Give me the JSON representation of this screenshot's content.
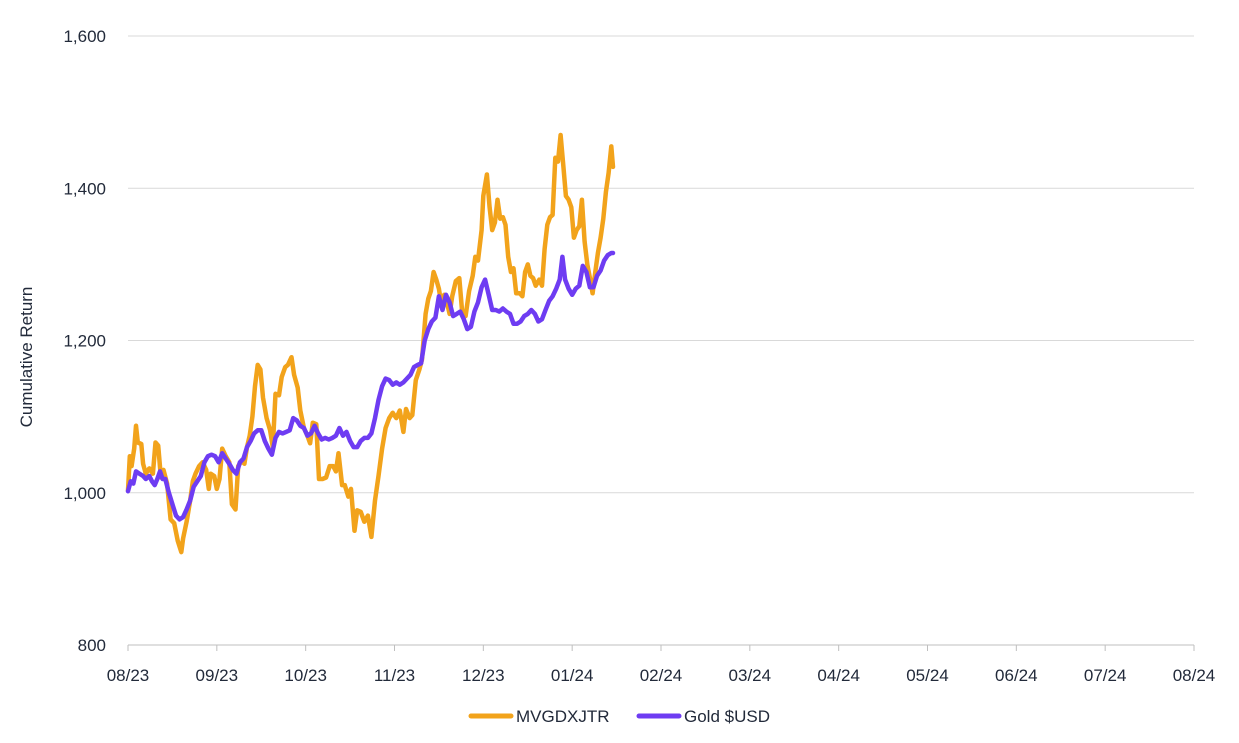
{
  "chart_data": {
    "type": "line",
    "title": "",
    "xlabel": "",
    "ylabel": "Cumulative Return",
    "ylim": [
      800,
      1600
    ],
    "yticks": [
      "800",
      "1,000",
      "1,200",
      "1,400",
      "1,600"
    ],
    "ytick_values": [
      800,
      1000,
      1200,
      1400,
      1600
    ],
    "categories": [
      "08/23",
      "09/23",
      "10/23",
      "11/23",
      "12/23",
      "01/24",
      "02/24",
      "03/24",
      "04/24",
      "05/24",
      "06/24",
      "07/24",
      "08/24"
    ],
    "grid": "horizontal",
    "legend_position": "bottom-center",
    "colors": {
      "MVGDXJTR": "#F2A31B",
      "Gold $USD": "#6E3CF2",
      "grid": "#d9d9d9",
      "text": "#222a3a"
    },
    "series": [
      {
        "name": "MVGDXJTR",
        "values": [
          [
            0,
            1003
          ],
          [
            0.02,
            1048
          ],
          [
            0.04,
            1035
          ],
          [
            0.07,
            1058
          ],
          [
            0.09,
            1088
          ],
          [
            0.11,
            1066
          ],
          [
            0.15,
            1064
          ],
          [
            0.17,
            1038
          ],
          [
            0.2,
            1025
          ],
          [
            0.24,
            1032
          ],
          [
            0.28,
            1025
          ],
          [
            0.31,
            1066
          ],
          [
            0.34,
            1062
          ],
          [
            0.37,
            1020
          ],
          [
            0.4,
            1030
          ],
          [
            0.44,
            1012
          ],
          [
            0.48,
            965
          ],
          [
            0.52,
            960
          ],
          [
            0.56,
            937
          ],
          [
            0.6,
            922
          ],
          [
            0.62,
            940
          ],
          [
            0.66,
            962
          ],
          [
            0.7,
            990
          ],
          [
            0.73,
            1015
          ],
          [
            0.76,
            1025
          ],
          [
            0.8,
            1035
          ],
          [
            0.84,
            1040
          ],
          [
            0.88,
            1030
          ],
          [
            0.91,
            1005
          ],
          [
            0.93,
            1025
          ],
          [
            0.97,
            1022
          ],
          [
            1.0,
            1005
          ],
          [
            1.03,
            1018
          ],
          [
            1.06,
            1058
          ],
          [
            1.1,
            1048
          ],
          [
            1.14,
            1040
          ],
          [
            1.17,
            985
          ],
          [
            1.21,
            978
          ],
          [
            1.24,
            1035
          ],
          [
            1.28,
            1042
          ],
          [
            1.31,
            1038
          ],
          [
            1.34,
            1060
          ],
          [
            1.37,
            1075
          ],
          [
            1.4,
            1100
          ],
          [
            1.43,
            1140
          ],
          [
            1.46,
            1168
          ],
          [
            1.49,
            1162
          ],
          [
            1.52,
            1125
          ],
          [
            1.56,
            1098
          ],
          [
            1.6,
            1082
          ],
          [
            1.63,
            1060
          ],
          [
            1.66,
            1130
          ],
          [
            1.7,
            1128
          ],
          [
            1.73,
            1152
          ],
          [
            1.77,
            1165
          ],
          [
            1.8,
            1168
          ],
          [
            1.84,
            1178
          ],
          [
            1.87,
            1155
          ],
          [
            1.91,
            1138
          ],
          [
            1.94,
            1108
          ],
          [
            1.98,
            1085
          ],
          [
            2.02,
            1075
          ],
          [
            2.05,
            1065
          ],
          [
            2.08,
            1092
          ],
          [
            2.12,
            1090
          ],
          [
            2.15,
            1018
          ],
          [
            2.19,
            1018
          ],
          [
            2.23,
            1020
          ],
          [
            2.27,
            1035
          ],
          [
            2.31,
            1035
          ],
          [
            2.34,
            1028
          ],
          [
            2.37,
            1052
          ],
          [
            2.41,
            1010
          ],
          [
            2.44,
            1010
          ],
          [
            2.48,
            995
          ],
          [
            2.51,
            1005
          ],
          [
            2.55,
            950
          ],
          [
            2.58,
            977
          ],
          [
            2.62,
            975
          ],
          [
            2.66,
            962
          ],
          [
            2.7,
            970
          ],
          [
            2.74,
            942
          ],
          [
            2.78,
            990
          ],
          [
            2.82,
            1022
          ],
          [
            2.86,
            1058
          ],
          [
            2.9,
            1085
          ],
          [
            2.94,
            1098
          ],
          [
            2.98,
            1105
          ],
          [
            3.02,
            1098
          ],
          [
            3.06,
            1108
          ],
          [
            3.1,
            1080
          ],
          [
            3.13,
            1110
          ],
          [
            3.17,
            1098
          ],
          [
            3.2,
            1102
          ],
          [
            3.24,
            1148
          ],
          [
            3.28,
            1162
          ],
          [
            3.31,
            1175
          ],
          [
            3.35,
            1235
          ],
          [
            3.38,
            1255
          ],
          [
            3.41,
            1265
          ],
          [
            3.44,
            1290
          ],
          [
            3.47,
            1280
          ],
          [
            3.5,
            1268
          ],
          [
            3.53,
            1245
          ],
          [
            3.56,
            1260
          ],
          [
            3.59,
            1250
          ],
          [
            3.62,
            1235
          ],
          [
            3.65,
            1258
          ],
          [
            3.69,
            1278
          ],
          [
            3.73,
            1282
          ],
          [
            3.76,
            1240
          ],
          [
            3.8,
            1232
          ],
          [
            3.84,
            1265
          ],
          [
            3.88,
            1285
          ],
          [
            3.91,
            1310
          ],
          [
            3.94,
            1305
          ],
          [
            3.98,
            1345
          ],
          [
            4.0,
            1390
          ],
          [
            4.04,
            1418
          ],
          [
            4.07,
            1375
          ],
          [
            4.1,
            1345
          ],
          [
            4.13,
            1355
          ],
          [
            4.16,
            1385
          ],
          [
            4.19,
            1360
          ],
          [
            4.22,
            1362
          ],
          [
            4.25,
            1352
          ],
          [
            4.28,
            1310
          ],
          [
            4.31,
            1290
          ],
          [
            4.34,
            1295
          ],
          [
            4.37,
            1262
          ],
          [
            4.41,
            1262
          ],
          [
            4.44,
            1258
          ],
          [
            4.47,
            1290
          ],
          [
            4.5,
            1300
          ],
          [
            4.53,
            1285
          ],
          [
            4.56,
            1282
          ],
          [
            4.59,
            1272
          ],
          [
            4.63,
            1280
          ],
          [
            4.66,
            1272
          ],
          [
            4.69,
            1320
          ],
          [
            4.72,
            1352
          ],
          [
            4.75,
            1362
          ],
          [
            4.78,
            1365
          ],
          [
            4.81,
            1440
          ],
          [
            4.84,
            1435
          ],
          [
            4.87,
            1470
          ],
          [
            4.9,
            1430
          ],
          [
            4.93,
            1390
          ],
          [
            4.96,
            1385
          ],
          [
            4.99,
            1375
          ],
          [
            5.02,
            1335
          ],
          [
            5.05,
            1345
          ],
          [
            5.08,
            1350
          ],
          [
            5.11,
            1385
          ],
          [
            5.14,
            1330
          ],
          [
            5.17,
            1300
          ],
          [
            5.2,
            1282
          ],
          [
            5.23,
            1262
          ],
          [
            5.26,
            1290
          ],
          [
            5.29,
            1315
          ],
          [
            5.32,
            1335
          ],
          [
            5.35,
            1360
          ],
          [
            5.38,
            1395
          ],
          [
            5.41,
            1420
          ],
          [
            5.44,
            1455
          ],
          [
            5.46,
            1428
          ]
        ]
      },
      {
        "name": "Gold $USD",
        "values": [
          [
            0,
            1002
          ],
          [
            0.03,
            1015
          ],
          [
            0.06,
            1012
          ],
          [
            0.09,
            1028
          ],
          [
            0.13,
            1025
          ],
          [
            0.17,
            1022
          ],
          [
            0.2,
            1018
          ],
          [
            0.24,
            1022
          ],
          [
            0.27,
            1015
          ],
          [
            0.3,
            1010
          ],
          [
            0.33,
            1018
          ],
          [
            0.36,
            1028
          ],
          [
            0.39,
            1018
          ],
          [
            0.42,
            1018
          ],
          [
            0.46,
            1000
          ],
          [
            0.5,
            985
          ],
          [
            0.54,
            970
          ],
          [
            0.58,
            965
          ],
          [
            0.62,
            968
          ],
          [
            0.66,
            978
          ],
          [
            0.7,
            990
          ],
          [
            0.74,
            1008
          ],
          [
            0.78,
            1015
          ],
          [
            0.82,
            1022
          ],
          [
            0.86,
            1040
          ],
          [
            0.9,
            1048
          ],
          [
            0.94,
            1050
          ],
          [
            0.98,
            1048
          ],
          [
            1.02,
            1040
          ],
          [
            1.06,
            1052
          ],
          [
            1.1,
            1045
          ],
          [
            1.14,
            1038
          ],
          [
            1.18,
            1030
          ],
          [
            1.22,
            1025
          ],
          [
            1.26,
            1040
          ],
          [
            1.3,
            1045
          ],
          [
            1.34,
            1060
          ],
          [
            1.38,
            1068
          ],
          [
            1.42,
            1078
          ],
          [
            1.46,
            1082
          ],
          [
            1.5,
            1082
          ],
          [
            1.54,
            1068
          ],
          [
            1.58,
            1058
          ],
          [
            1.62,
            1050
          ],
          [
            1.66,
            1072
          ],
          [
            1.7,
            1080
          ],
          [
            1.74,
            1078
          ],
          [
            1.78,
            1080
          ],
          [
            1.82,
            1082
          ],
          [
            1.86,
            1098
          ],
          [
            1.9,
            1095
          ],
          [
            1.94,
            1088
          ],
          [
            1.98,
            1085
          ],
          [
            2.02,
            1075
          ],
          [
            2.06,
            1078
          ],
          [
            2.1,
            1088
          ],
          [
            2.14,
            1078
          ],
          [
            2.18,
            1070
          ],
          [
            2.22,
            1072
          ],
          [
            2.26,
            1070
          ],
          [
            2.3,
            1072
          ],
          [
            2.34,
            1075
          ],
          [
            2.38,
            1085
          ],
          [
            2.42,
            1075
          ],
          [
            2.46,
            1080
          ],
          [
            2.5,
            1068
          ],
          [
            2.54,
            1060
          ],
          [
            2.58,
            1060
          ],
          [
            2.62,
            1068
          ],
          [
            2.66,
            1072
          ],
          [
            2.7,
            1072
          ],
          [
            2.74,
            1078
          ],
          [
            2.78,
            1098
          ],
          [
            2.82,
            1122
          ],
          [
            2.86,
            1140
          ],
          [
            2.9,
            1150
          ],
          [
            2.94,
            1148
          ],
          [
            2.98,
            1142
          ],
          [
            3.02,
            1145
          ],
          [
            3.06,
            1142
          ],
          [
            3.1,
            1145
          ],
          [
            3.14,
            1150
          ],
          [
            3.18,
            1155
          ],
          [
            3.22,
            1165
          ],
          [
            3.26,
            1168
          ],
          [
            3.3,
            1170
          ],
          [
            3.34,
            1200
          ],
          [
            3.38,
            1215
          ],
          [
            3.42,
            1225
          ],
          [
            3.46,
            1230
          ],
          [
            3.5,
            1258
          ],
          [
            3.54,
            1240
          ],
          [
            3.58,
            1260
          ],
          [
            3.62,
            1250
          ],
          [
            3.66,
            1232
          ],
          [
            3.7,
            1235
          ],
          [
            3.74,
            1238
          ],
          [
            3.78,
            1228
          ],
          [
            3.82,
            1215
          ],
          [
            3.86,
            1218
          ],
          [
            3.9,
            1238
          ],
          [
            3.94,
            1250
          ],
          [
            3.98,
            1270
          ],
          [
            4.02,
            1280
          ],
          [
            4.06,
            1260
          ],
          [
            4.1,
            1240
          ],
          [
            4.14,
            1240
          ],
          [
            4.18,
            1238
          ],
          [
            4.22,
            1242
          ],
          [
            4.26,
            1238
          ],
          [
            4.3,
            1235
          ],
          [
            4.34,
            1222
          ],
          [
            4.38,
            1222
          ],
          [
            4.42,
            1225
          ],
          [
            4.46,
            1232
          ],
          [
            4.5,
            1235
          ],
          [
            4.54,
            1240
          ],
          [
            4.58,
            1235
          ],
          [
            4.62,
            1225
          ],
          [
            4.66,
            1228
          ],
          [
            4.7,
            1240
          ],
          [
            4.74,
            1252
          ],
          [
            4.78,
            1258
          ],
          [
            4.82,
            1268
          ],
          [
            4.86,
            1280
          ],
          [
            4.89,
            1310
          ],
          [
            4.92,
            1280
          ],
          [
            4.96,
            1268
          ],
          [
            5.0,
            1260
          ],
          [
            5.04,
            1268
          ],
          [
            5.08,
            1272
          ],
          [
            5.12,
            1298
          ],
          [
            5.16,
            1290
          ],
          [
            5.2,
            1270
          ],
          [
            5.24,
            1270
          ],
          [
            5.28,
            1285
          ],
          [
            5.32,
            1292
          ],
          [
            5.36,
            1305
          ],
          [
            5.4,
            1312
          ],
          [
            5.44,
            1315
          ],
          [
            5.46,
            1315
          ]
        ]
      }
    ]
  }
}
